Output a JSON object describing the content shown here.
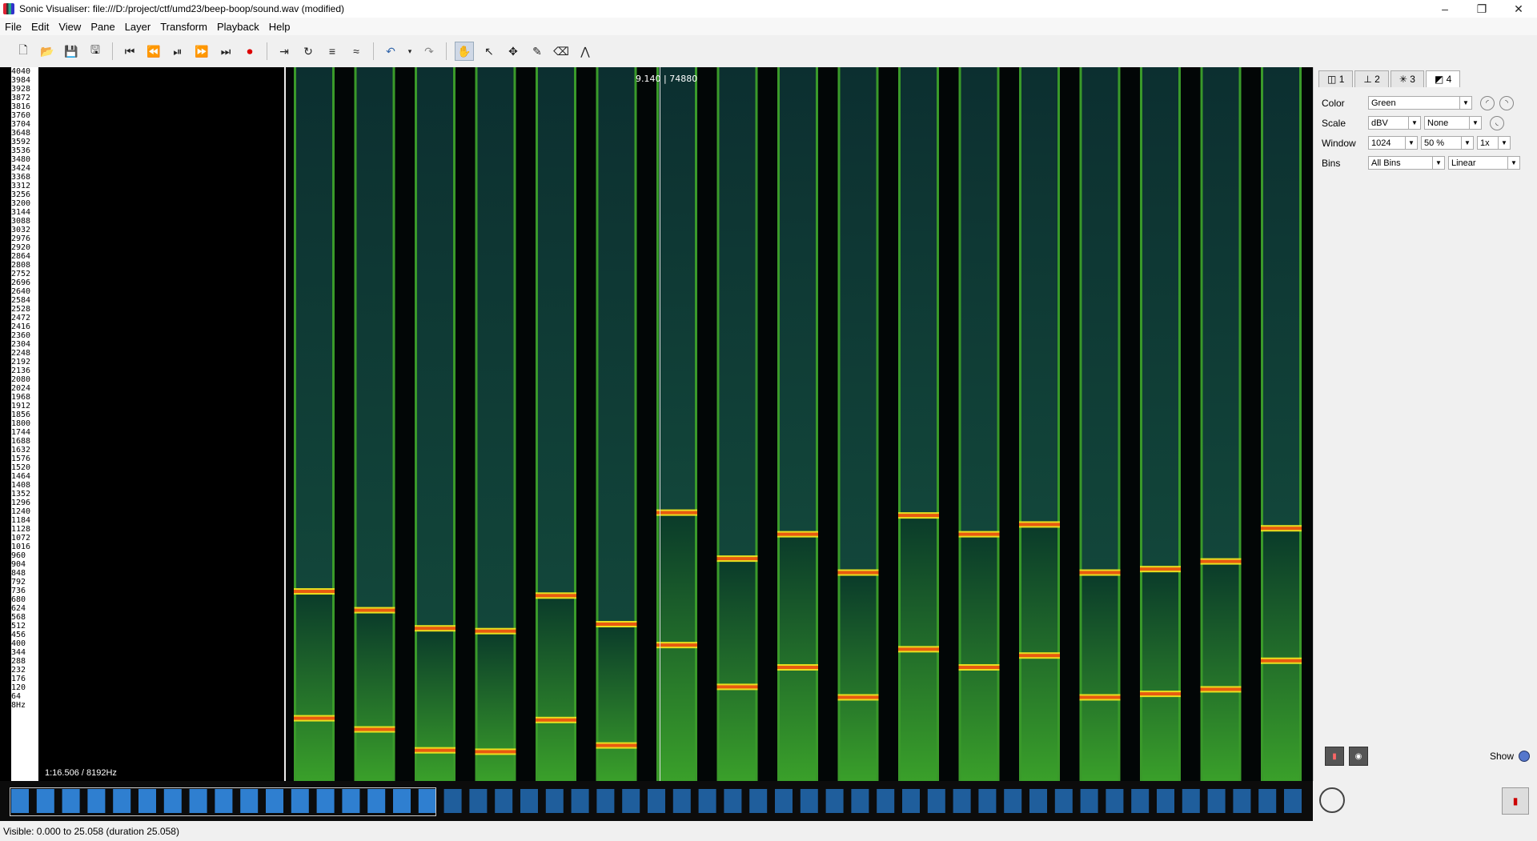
{
  "window": {
    "title": "Sonic Visualiser: file:///D:/project/ctf/umd23/beep-boop/sound.wav (modified)",
    "controls": [
      "–",
      "❐",
      "✕"
    ]
  },
  "menu": [
    "File",
    "Edit",
    "View",
    "Pane",
    "Layer",
    "Transform",
    "Playback",
    "Help"
  ],
  "toolbar": {
    "icons": [
      "new-file-icon",
      "open-icon",
      "save-icon",
      "save-as-icon",
      "rewind-start-icon",
      "rewind-icon",
      "play-pause-icon",
      "fast-forward-icon",
      "fast-forward-end-icon",
      "record-icon",
      "play-selection-icon",
      "loop-icon",
      "solo-icon",
      "speed-icon",
      "undo-icon",
      "redo-icon",
      "navigate-icon",
      "select-icon",
      "move-icon",
      "draw-icon",
      "erase-icon",
      "measure-icon"
    ]
  },
  "scale": {
    "labels": [
      "4040",
      "3984",
      "3928",
      "3872",
      "3816",
      "3760",
      "3704",
      "3648",
      "3592",
      "3536",
      "3480",
      "3424",
      "3368",
      "3312",
      "3256",
      "3200",
      "3144",
      "3088",
      "3032",
      "2976",
      "2920",
      "2864",
      "2808",
      "2752",
      "2696",
      "2640",
      "2584",
      "2528",
      "2472",
      "2416",
      "2360",
      "2304",
      "2248",
      "2192",
      "2136",
      "2080",
      "2024",
      "1968",
      "1912",
      "1856",
      "1800",
      "1744",
      "1688",
      "1632",
      "1576",
      "1520",
      "1464",
      "1408",
      "1352",
      "1296",
      "1240",
      "1184",
      "1128",
      "1072",
      "1016",
      "960",
      "904",
      "848",
      "792",
      "736",
      "680",
      "624",
      "568",
      "512",
      "456",
      "400",
      "344",
      "288",
      "232",
      "176",
      "120",
      "64",
      "8Hz"
    ]
  },
  "pane": {
    "cursor_readout": "9.140",
    "cursor_sample": "74880",
    "info": "1:16.506 / 8192Hz"
  },
  "spectrogram": {
    "freq_max": 4096,
    "beeps": [
      {
        "low": 360,
        "high": 1088
      },
      {
        "low": 296,
        "high": 980
      },
      {
        "low": 176,
        "high": 876
      },
      {
        "low": 168,
        "high": 860
      },
      {
        "low": 350,
        "high": 1064
      },
      {
        "low": 204,
        "high": 900
      },
      {
        "low": 780,
        "high": 1540
      },
      {
        "low": 540,
        "high": 1276
      },
      {
        "low": 652,
        "high": 1416
      },
      {
        "low": 480,
        "high": 1196
      },
      {
        "low": 756,
        "high": 1524
      },
      {
        "low": 652,
        "high": 1416
      },
      {
        "low": 720,
        "high": 1472
      },
      {
        "low": 480,
        "high": 1196
      },
      {
        "low": 500,
        "high": 1216
      },
      {
        "low": 526,
        "high": 1260
      },
      {
        "low": 690,
        "high": 1450
      }
    ]
  },
  "panel": {
    "tabs": [
      {
        "label": "1",
        "icon": "view-icon"
      },
      {
        "label": "2",
        "icon": "ruler-icon"
      },
      {
        "label": "3",
        "icon": "waveform-icon"
      },
      {
        "label": "4",
        "icon": "spectrogram-icon"
      }
    ],
    "color": {
      "label": "Color",
      "value": "Green"
    },
    "scale": {
      "label": "Scale",
      "value": "dBV",
      "norm": "None"
    },
    "window": {
      "label": "Window",
      "size": "1024",
      "overlap": "50 %",
      "oversample": "1x"
    },
    "bins": {
      "label": "Bins",
      "value": "All Bins",
      "mode": "Linear"
    },
    "show_label": "Show"
  },
  "status": {
    "text": "Visible: 0.000 to 25.058 (duration 25.058)"
  },
  "colors": {
    "green": "#3a9a2a",
    "orange": "#e85a10",
    "yellow": "#e8e020"
  }
}
